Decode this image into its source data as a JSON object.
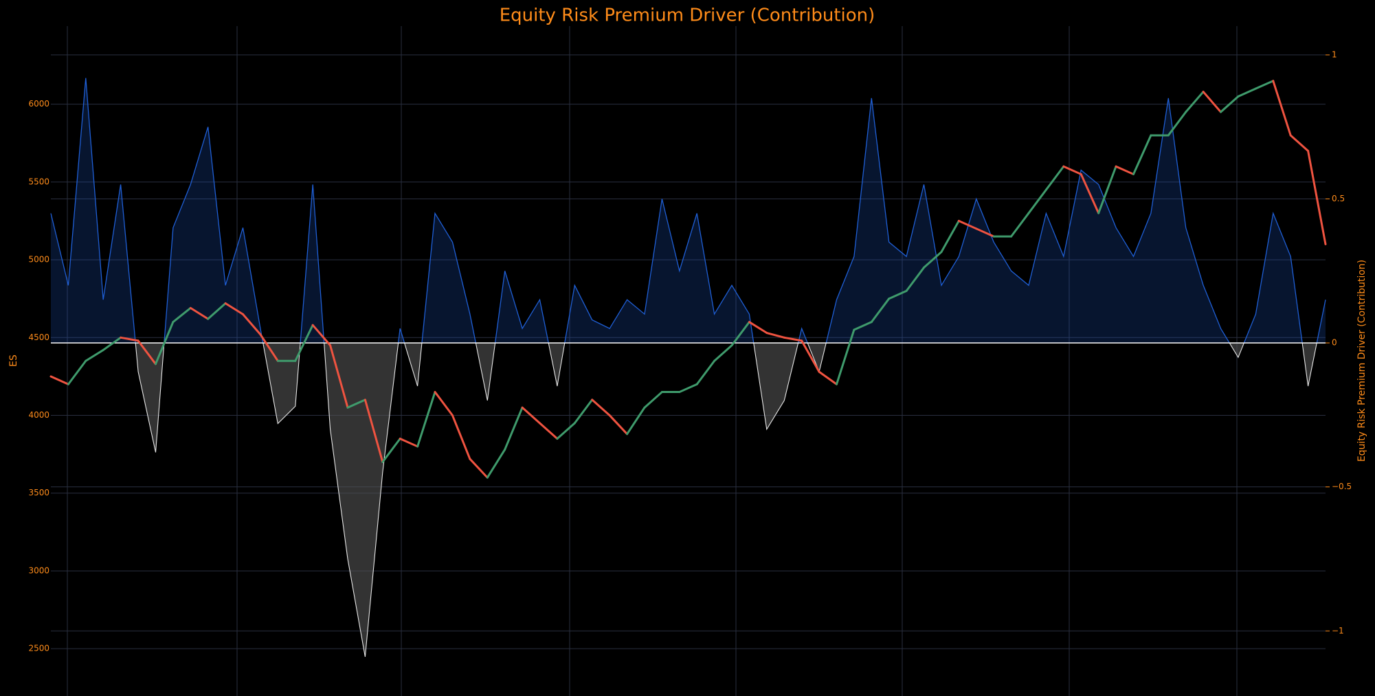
{
  "chart_data": {
    "type": "candlestick-area",
    "title": "Equity Risk Premium Driver (Contribution)",
    "y_label": "ES",
    "y2_label": "Equity Risk Premium Driver (Contribution)",
    "ylim": [
      2196,
      6502
    ],
    "yticks": [
      2500,
      3000,
      3500,
      4000,
      4500,
      5000,
      5500,
      6000
    ],
    "y2lim": [
      -1.226,
      1.1
    ],
    "y2ticks": [
      {
        "value": -1,
        "label": "−1"
      },
      {
        "value": -0.5,
        "label": "−0.5"
      },
      0,
      0.5,
      1
    ],
    "grid": true,
    "series": [
      {
        "name": "ES",
        "color": "#3f9b6c",
        "down_color": "#ef5340",
        "values": [
          4250,
          4200,
          4350,
          4420,
          4500,
          4480,
          4330,
          4600,
          4690,
          4620,
          4720,
          4650,
          4520,
          4350,
          4350,
          4580,
          4450,
          4050,
          4100,
          3700,
          3850,
          3800,
          4150,
          4000,
          3720,
          3600,
          3780,
          4050,
          3950,
          3850,
          3950,
          4100,
          4000,
          3880,
          4050,
          4150,
          4150,
          4200,
          4350,
          4450,
          4600,
          4530,
          4500,
          4480,
          4280,
          4200,
          4550,
          4600,
          4750,
          4800,
          4950,
          5050,
          5250,
          5200,
          5150,
          5150,
          5300,
          5450,
          5600,
          5550,
          5300,
          5600,
          5550,
          5800,
          5800,
          5950,
          6080,
          5950,
          6050,
          6100,
          6150,
          5800,
          5700,
          5100
        ]
      },
      {
        "name": "Equity Risk Premium Driver (Contribution)",
        "axis": "y2",
        "color": "#1f5fd6",
        "negative_color": "#e8e8e8",
        "values": [
          0.45,
          0.2,
          0.92,
          0.15,
          0.55,
          -0.1,
          -0.38,
          0.4,
          0.55,
          0.75,
          0.2,
          0.4,
          0.05,
          -0.28,
          -0.22,
          0.55,
          -0.3,
          -0.75,
          -1.09,
          -0.45,
          0.05,
          -0.15,
          0.45,
          0.35,
          0.1,
          -0.2,
          0.25,
          0.05,
          0.15,
          -0.15,
          0.2,
          0.08,
          0.05,
          0.15,
          0.1,
          0.5,
          0.25,
          0.45,
          0.1,
          0.2,
          0.1,
          -0.3,
          -0.2,
          0.05,
          -0.1,
          0.15,
          0.3,
          0.85,
          0.35,
          0.3,
          0.55,
          0.2,
          0.3,
          0.5,
          0.35,
          0.25,
          0.2,
          0.45,
          0.3,
          0.6,
          0.55,
          0.4,
          0.3,
          0.45,
          0.85,
          0.4,
          0.2,
          0.05,
          -0.05,
          0.1,
          0.45,
          0.3,
          -0.15,
          0.15
        ]
      }
    ]
  }
}
